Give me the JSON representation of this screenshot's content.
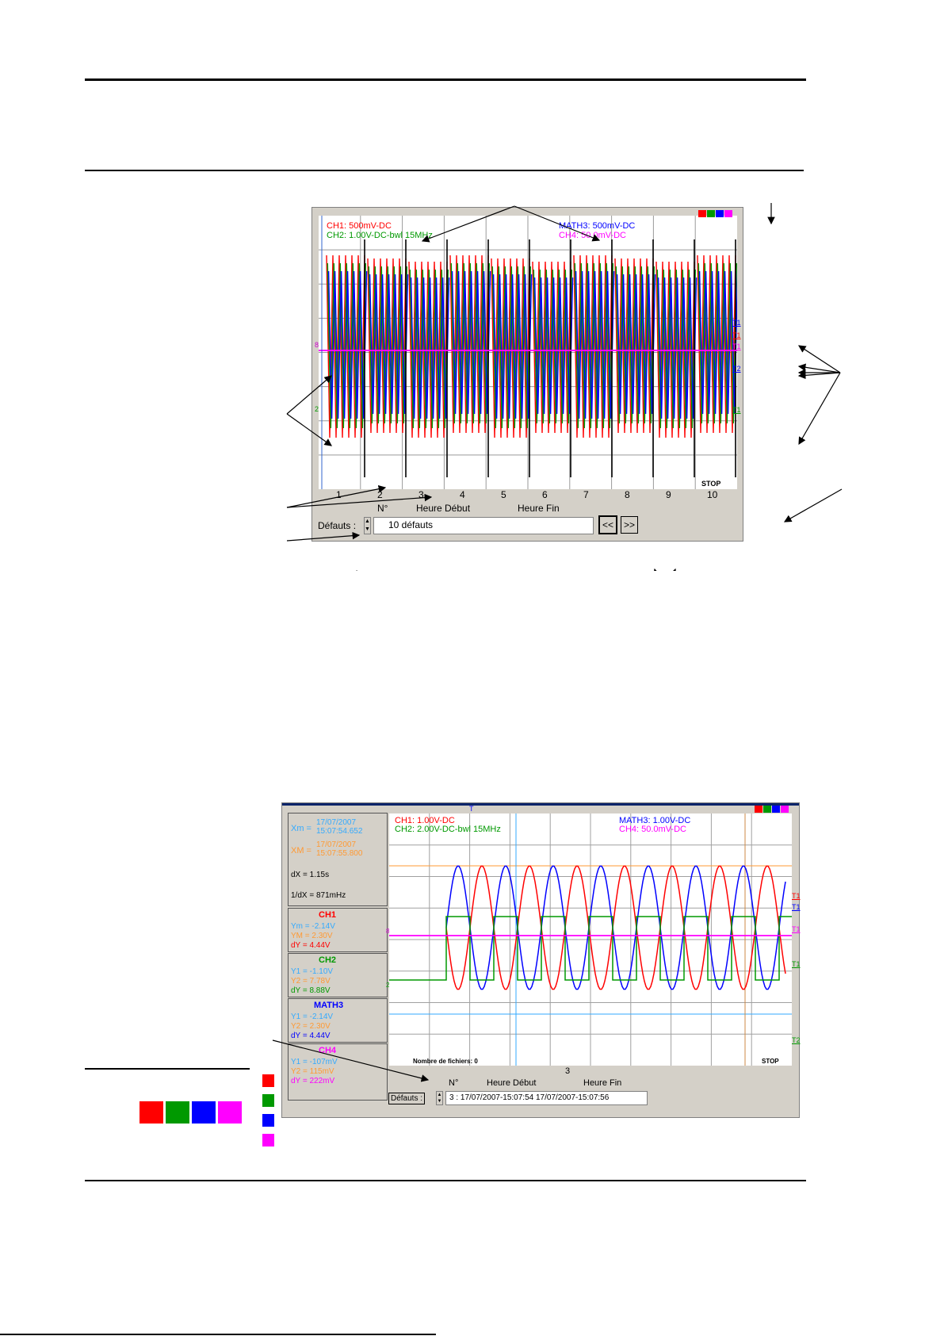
{
  "scope1": {
    "labels_left": [
      "CH1: 500mV-DC",
      "CH2: 1.00V-DC-bwl 15MHz"
    ],
    "labels_right": [
      "MATH3: 500mV-DC",
      "CH4: 50.0mV-DC"
    ],
    "fault_numbers": [
      "1",
      "2",
      "3",
      "4",
      "5",
      "6",
      "7",
      "8",
      "9",
      "10"
    ],
    "headers": {
      "num": "N°",
      "start": "Heure Début",
      "end": "Heure Fin"
    },
    "status": "STOP",
    "defauts_label": "Défauts :",
    "defauts_value": "10 défauts",
    "prev_label": "<<",
    "next_label": ">>",
    "trig_markers": [
      "T1",
      "T1",
      "T1",
      "T2",
      "T1"
    ],
    "left_markers": [
      "8",
      "2"
    ]
  },
  "scope2": {
    "xm_label": "Xm =",
    "xm_date": "17/07/2007",
    "xm_time": "15:07:54.652",
    "xM_label": "XM =",
    "xM_date": "17/07/2007",
    "xM_time": "15:07:55.800",
    "dx": "dX = 1.15s",
    "inv_dx": "1/dX = 871mHz",
    "ch1": {
      "title": "CH1",
      "l1": "Ym = -2.14V",
      "l2": "YM = 2.30V",
      "l3": "dY = 4.44V"
    },
    "ch2": {
      "title": "CH2",
      "l1": "Y1 = -1.10V",
      "l2": "Y2 = 7.78V",
      "l3": "dY = 8.88V"
    },
    "math3": {
      "title": "MATH3",
      "l1": "Y1 = -2.14V",
      "l2": "Y2 = 2.30V",
      "l3": "dY = 4.44V"
    },
    "ch4": {
      "title": "CH4",
      "l1": "Y1 = -107mV",
      "l2": "Y2 = 115mV",
      "l3": "dY = 222mV"
    },
    "labels_left": [
      "CH1: 1.00V-DC",
      "CH2: 2.00V-DC-bwl 15MHz"
    ],
    "labels_right": [
      "MATH3: 1.00V-DC",
      "CH4: 50.0mV-DC"
    ],
    "nb_fichiers": "Nombre de fichiers:  0",
    "status": "STOP",
    "fault_number": "3",
    "headers": {
      "num": "N°",
      "start": "Heure Début",
      "end": "Heure Fin"
    },
    "defauts_label": "Défauts :",
    "row_value": "3 :  17/07/2007-15:07:54     17/07/2007-15:07:56",
    "trig_markers": [
      "T1",
      "T1",
      "T1",
      "T1",
      "T2"
    ],
    "top_marker": "T",
    "left_markers": [
      "8",
      "2"
    ]
  },
  "colors": {
    "ch1": "#ff0000",
    "ch2": "#009900",
    "math3": "#0000ff",
    "ch4": "#ff00ff",
    "cursor1": "#33aaff",
    "cursor2": "#ff9933",
    "panel": "#d4d0c8"
  },
  "icons": [
    "ch1-trace-icon",
    "ch2-trace-icon",
    "math3-trace-icon",
    "ch4-trace-icon"
  ]
}
